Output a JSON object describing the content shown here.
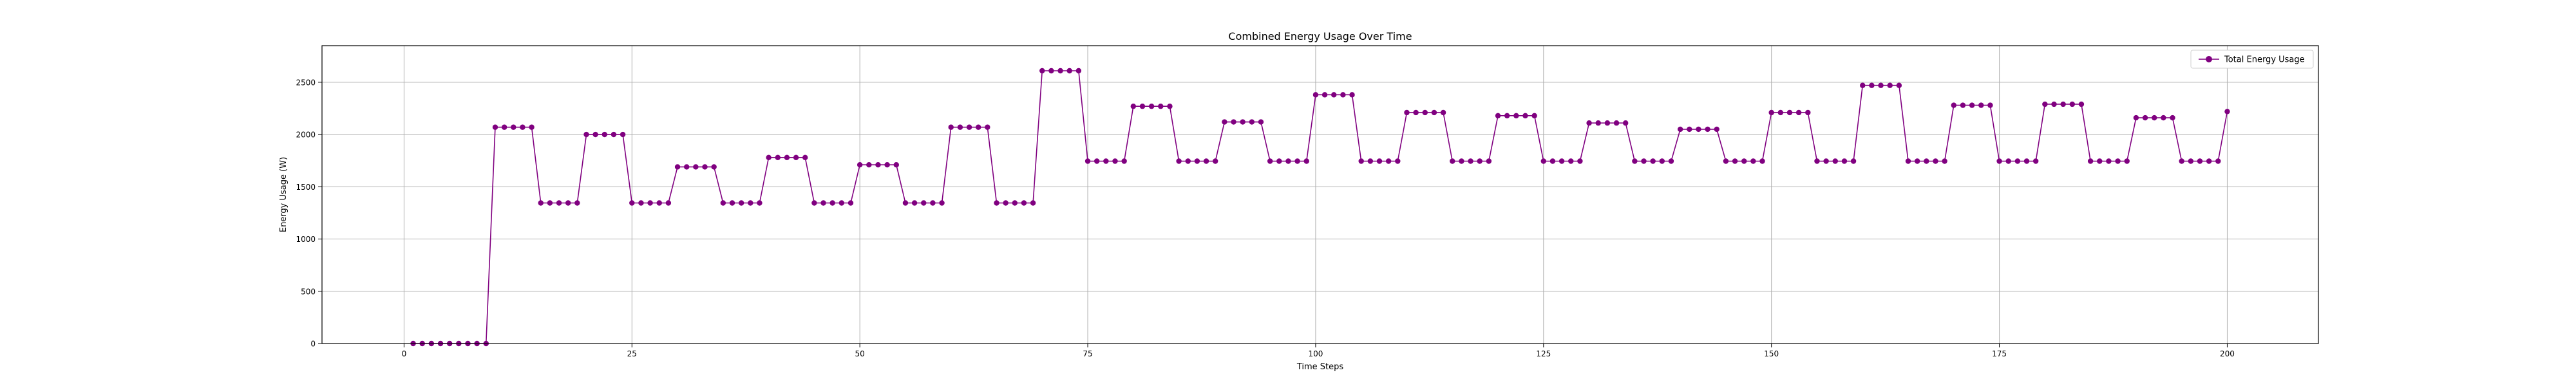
{
  "chart_data": {
    "type": "line",
    "title": "Combined Energy Usage Over Time",
    "xlabel": "Time Steps",
    "ylabel": "Energy Usage (W)",
    "xlim": [
      -9,
      210
    ],
    "ylim": [
      0,
      2850
    ],
    "xticks": [
      0,
      25,
      50,
      75,
      100,
      125,
      150,
      175,
      200
    ],
    "yticks": [
      0,
      500,
      1000,
      1500,
      2000,
      2500
    ],
    "grid": true,
    "legend": {
      "position": "top-right"
    },
    "series": [
      {
        "name": "Total Energy Usage",
        "color": "#800080",
        "marker": "circle",
        "x": [
          1,
          2,
          3,
          4,
          5,
          6,
          7,
          8,
          9,
          10,
          11,
          12,
          13,
          14,
          15,
          16,
          17,
          18,
          19,
          20,
          21,
          22,
          23,
          24,
          25,
          26,
          27,
          28,
          29,
          30,
          31,
          32,
          33,
          34,
          35,
          36,
          37,
          38,
          39,
          40,
          41,
          42,
          43,
          44,
          45,
          46,
          47,
          48,
          49,
          50,
          51,
          52,
          53,
          54,
          55,
          56,
          57,
          58,
          59,
          60,
          61,
          62,
          63,
          64,
          65,
          66,
          67,
          68,
          69,
          70,
          71,
          72,
          73,
          74,
          75,
          76,
          77,
          78,
          79,
          80,
          81,
          82,
          83,
          84,
          85,
          86,
          87,
          88,
          89,
          90,
          91,
          92,
          93,
          94,
          95,
          96,
          97,
          98,
          99,
          100,
          101,
          102,
          103,
          104,
          105,
          106,
          107,
          108,
          109,
          110,
          111,
          112,
          113,
          114,
          115,
          116,
          117,
          118,
          119,
          120,
          121,
          122,
          123,
          124,
          125,
          126,
          127,
          128,
          129,
          130,
          131,
          132,
          133,
          134,
          135,
          136,
          137,
          138,
          139,
          140,
          141,
          142,
          143,
          144,
          145,
          146,
          147,
          148,
          149,
          150,
          151,
          152,
          153,
          154,
          155,
          156,
          157,
          158,
          159,
          160,
          161,
          162,
          163,
          164,
          165,
          166,
          167,
          168,
          169,
          170,
          171,
          172,
          173,
          174,
          175,
          176,
          177,
          178,
          179,
          180,
          181,
          182,
          183,
          184,
          185,
          186,
          187,
          188,
          189,
          190,
          191,
          192,
          193,
          194,
          195,
          196,
          197,
          198,
          199,
          200
        ],
        "y": [
          0,
          0,
          0,
          0,
          0,
          0,
          0,
          0,
          0,
          2070,
          2070,
          2070,
          2070,
          2070,
          1345,
          1345,
          1345,
          1345,
          1345,
          2000,
          2000,
          2000,
          2000,
          2000,
          1345,
          1345,
          1345,
          1345,
          1345,
          1690,
          1690,
          1690,
          1690,
          1690,
          1345,
          1345,
          1345,
          1345,
          1345,
          1780,
          1780,
          1780,
          1780,
          1780,
          1345,
          1345,
          1345,
          1345,
          1345,
          1710,
          1710,
          1710,
          1710,
          1710,
          1345,
          1345,
          1345,
          1345,
          1345,
          2070,
          2070,
          2070,
          2070,
          2070,
          1345,
          1345,
          1345,
          1345,
          1345,
          2610,
          2610,
          2610,
          2610,
          2610,
          1745,
          1745,
          1745,
          1745,
          1745,
          2270,
          2270,
          2270,
          2270,
          2270,
          1745,
          1745,
          1745,
          1745,
          1745,
          2120,
          2120,
          2120,
          2120,
          2120,
          1745,
          1745,
          1745,
          1745,
          1745,
          2380,
          2380,
          2380,
          2380,
          2380,
          1745,
          1745,
          1745,
          1745,
          1745,
          2210,
          2210,
          2210,
          2210,
          2210,
          1745,
          1745,
          1745,
          1745,
          1745,
          2180,
          2180,
          2180,
          2180,
          2180,
          1745,
          1745,
          1745,
          1745,
          1745,
          2110,
          2110,
          2110,
          2110,
          2110,
          1745,
          1745,
          1745,
          1745,
          1745,
          2050,
          2050,
          2050,
          2050,
          2050,
          1745,
          1745,
          1745,
          1745,
          1745,
          2210,
          2210,
          2210,
          2210,
          2210,
          1745,
          1745,
          1745,
          1745,
          1745,
          2470,
          2470,
          2470,
          2470,
          2470,
          1745,
          1745,
          1745,
          1745,
          1745,
          2280,
          2280,
          2280,
          2280,
          2280,
          1745,
          1745,
          1745,
          1745,
          1745,
          2290,
          2290,
          2290,
          2290,
          2290,
          1745,
          1745,
          1745,
          1745,
          1745,
          2160,
          2160,
          2160,
          2160,
          2160,
          1745,
          1745,
          1745,
          1745,
          1745,
          2220
        ]
      }
    ]
  }
}
